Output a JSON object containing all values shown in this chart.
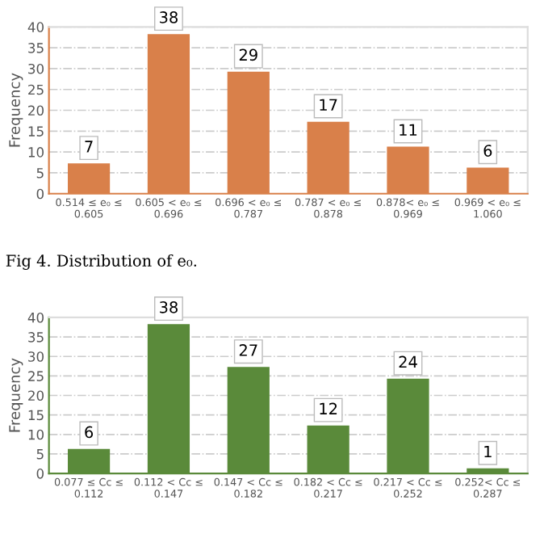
{
  "chart_data": [
    {
      "type": "bar",
      "ylabel": "Frequency",
      "categories": [
        "0.514 ≤ e₀ ≤\n0.605",
        "0.605 < e₀ ≤\n0.696",
        "0.696 < e₀ ≤\n0.787",
        "0.787 < e₀ ≤\n0.878",
        "0.878< e₀ ≤\n0.969",
        "0.969 < e₀ ≤\n1.060"
      ],
      "values": [
        7,
        38,
        29,
        17,
        11,
        6
      ],
      "color": "#d9804a",
      "ylim": [
        0,
        40
      ],
      "yticks": [
        0,
        5,
        10,
        15,
        20,
        25,
        30,
        35,
        40
      ],
      "grid": "y",
      "data_labels": true,
      "annotations": [
        "Fig 4. Distribution of e₀."
      ]
    },
    {
      "type": "bar",
      "ylabel": "Frequency",
      "categories": [
        "0.077 ≤ Cc ≤\n0.112",
        "0.112 < Cc ≤\n0.147",
        "0.147 < Cc ≤\n0.182",
        "0.182 < Cc ≤\n0.217",
        "0.217 < Cc ≤\n0.252",
        "0.252< Cc ≤\n0.287"
      ],
      "values": [
        6,
        38,
        27,
        12,
        24,
        1
      ],
      "color": "#5a8a3a",
      "ylim": [
        0,
        40
      ],
      "yticks": [
        0,
        5,
        10,
        15,
        20,
        25,
        30,
        35,
        40
      ],
      "grid": "y",
      "data_labels": true
    }
  ]
}
